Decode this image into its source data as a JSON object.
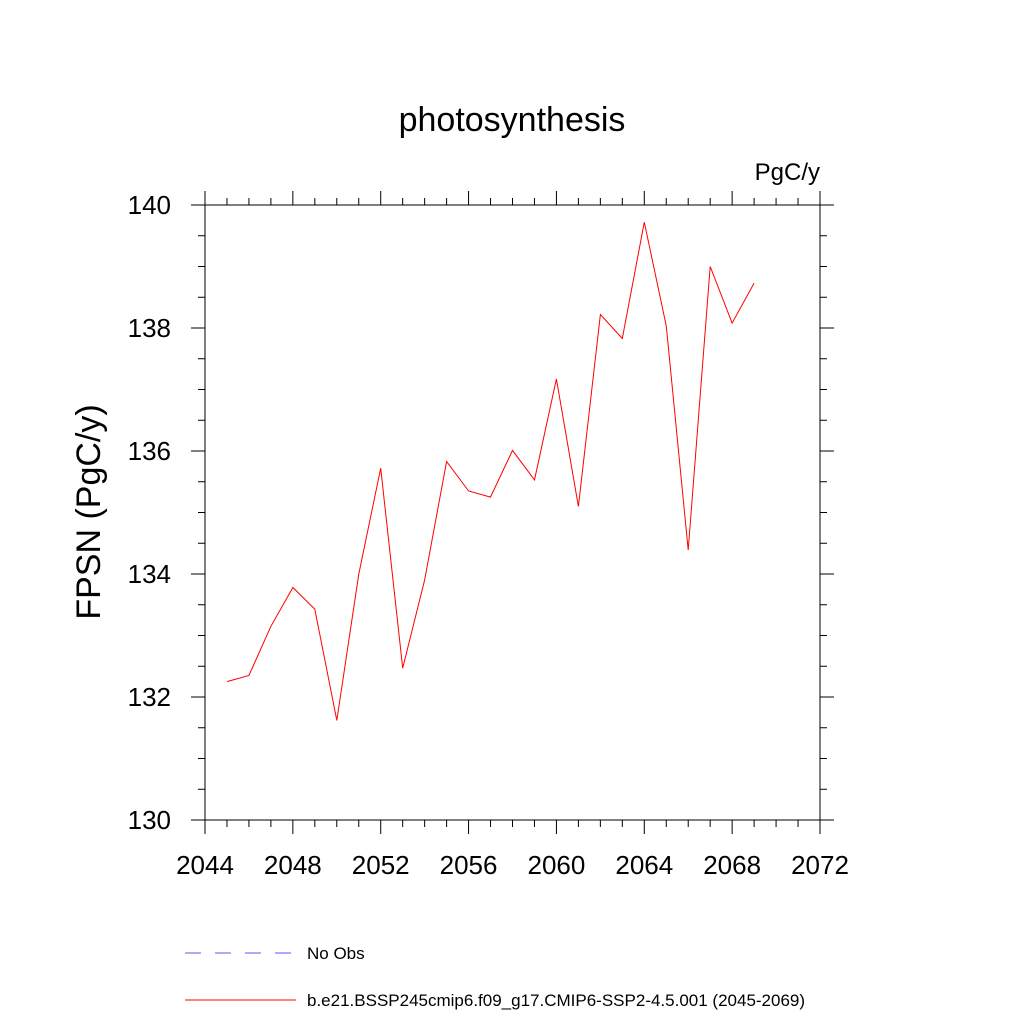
{
  "chart_data": {
    "type": "line",
    "title": "photosynthesis",
    "units": "PgC/y",
    "ylabel": "FPSN  (PgC/y)",
    "xlabel": "",
    "xlim": [
      2044,
      2072
    ],
    "ylim": [
      130,
      140
    ],
    "x_ticks": [
      "2044",
      "2048",
      "2052",
      "2056",
      "2060",
      "2064",
      "2068",
      "2072"
    ],
    "y_ticks": [
      "130",
      "132",
      "134",
      "136",
      "138",
      "140"
    ],
    "grid": false,
    "legend_position": "bottom-left",
    "series": [
      {
        "name": "No Obs",
        "color": "#5a5aff",
        "dash": "dashed",
        "x": [],
        "values": []
      },
      {
        "name": "b.e21.BSSP245cmip6.f09_g17.CMIP6-SSP2-4.5.001 (2045-2069)",
        "color": "#ff0000",
        "dash": "solid",
        "x": [
          2045,
          2046,
          2047,
          2048,
          2049,
          2050,
          2051,
          2052,
          2053,
          2054,
          2055,
          2056,
          2057,
          2058,
          2059,
          2060,
          2061,
          2062,
          2063,
          2064,
          2065,
          2066,
          2067,
          2068,
          2069
        ],
        "values": [
          132.25,
          132.35,
          133.15,
          133.78,
          133.43,
          131.62,
          134.0,
          135.72,
          132.47,
          133.9,
          135.83,
          135.35,
          135.25,
          136.01,
          135.53,
          137.17,
          135.1,
          138.22,
          137.83,
          139.72,
          138.03,
          134.39,
          139.0,
          138.08,
          138.73
        ]
      }
    ]
  }
}
